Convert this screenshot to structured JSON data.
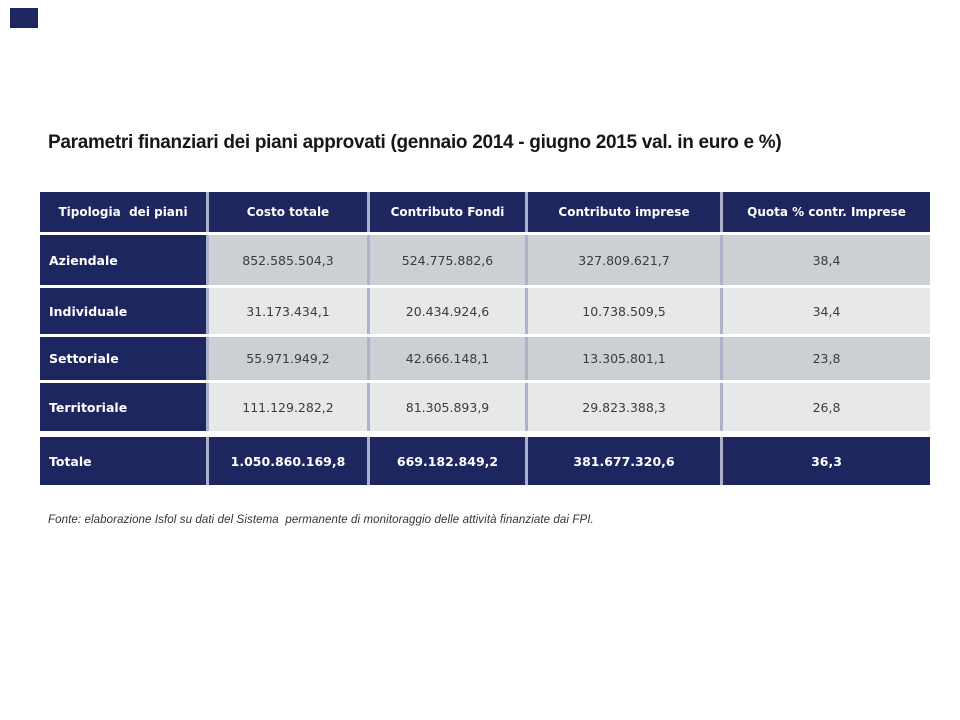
{
  "title": {
    "text": "Parametri finanziari dei piani approvati (gennaio 2014 - giugno 2015 val. in euro e %)"
  },
  "table": {
    "columns": [
      "Tipologia  dei piani",
      "Costo totale",
      "Contributo Fondi",
      "Contributo imprese",
      "Quota % contr. Imprese"
    ],
    "rows": [
      {
        "label": "Aziendale",
        "values": [
          "852.585.504,3",
          "524.775.882,6",
          "327.809.621,7",
          "38,4"
        ]
      },
      {
        "label": "Individuale",
        "values": [
          "31.173.434,1",
          "20.434.924,6",
          "10.738.509,5",
          "34,4"
        ]
      },
      {
        "label": "Settoriale",
        "values": [
          "55.971.949,2",
          "42.666.148,1",
          "13.305.801,1",
          "23,8"
        ]
      },
      {
        "label": "Territoriale",
        "values": [
          "111.129.282,2",
          "81.305.893,9",
          "29.823.388,3",
          "26,8"
        ]
      }
    ],
    "total_row": {
      "label": "Totale",
      "values": [
        "1.050.860.169,8",
        "669.182.849,2",
        "381.677.320,6",
        "36,3"
      ]
    },
    "colors": {
      "header_bg": "#1e2660",
      "header_text": "#ffffff",
      "band_a": "#cccfd4",
      "band_b": "#e7e8ea",
      "total_bg": "#1e2660",
      "value_text": "#3c3c3e",
      "column_separator": "#aeb2c9"
    }
  },
  "footer": {
    "text": "Fonte: elaborazione Isfol su dati del Sistema  permanente di monitoraggio delle attività finanziate dai FPI."
  }
}
